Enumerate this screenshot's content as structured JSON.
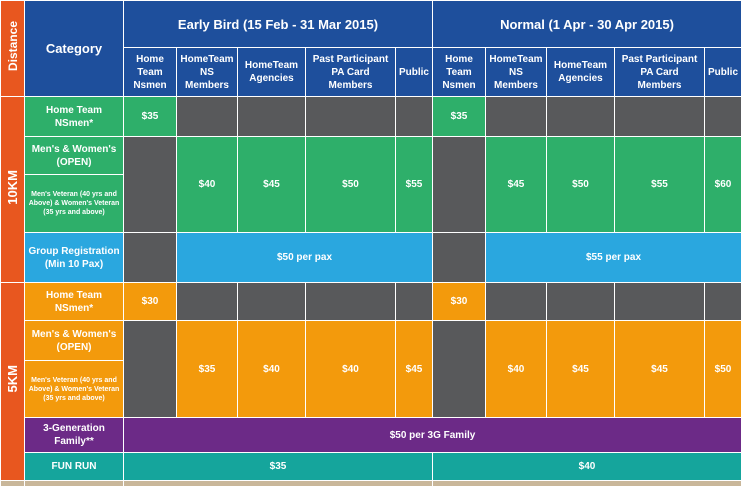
{
  "header": {
    "distance": "Distance",
    "category": "Category",
    "early_bird": "Early Bird (15 Feb - 31 Mar 2015)",
    "normal": "Normal (1 Apr - 30 Apr 2015)",
    "columns": [
      "Home Team Nsmen",
      "HomeTeam NS Members",
      "HomeTeam Agencies",
      "Past Participant PA Card Members",
      "Public"
    ]
  },
  "distances": {
    "km10": "10KM",
    "km5": "5KM"
  },
  "categories": {
    "hometeam_nsmen": "Home Team NSmen*",
    "mens_womens_open": "Men's & Women's (OPEN)",
    "veteran": "Men's Veteran (40 yrs and Above) & Women's Veteran (35 yrs and above)",
    "group": "Group Registration (Min 10 Pax)",
    "three_gen": "3-Generation Family**",
    "fun_run": "FUN RUN"
  },
  "prices_10km": {
    "early_nsmen": "$35",
    "normal_nsmen": "$35",
    "early": [
      "$40",
      "$45",
      "$50",
      "$55"
    ],
    "normal": [
      "$45",
      "$50",
      "$55",
      "$60"
    ],
    "group_early": "$50 per pax",
    "group_normal": "$55 per pax"
  },
  "prices_5km": {
    "early_nsmen": "$30",
    "normal_nsmen": "$30",
    "early": [
      "$35",
      "$40",
      "$40",
      "$45"
    ],
    "normal": [
      "$40",
      "$45",
      "$45",
      "$50"
    ],
    "three_gen": "$50 per 3G Family"
  },
  "fun_run": {
    "early": "$35",
    "normal": "$40"
  },
  "colors": {
    "header": "#1e4f9c",
    "distance": "#e8571f",
    "blocked": "#58595b",
    "km10": "#2eaf6a",
    "group": "#2aa7df",
    "km5": "#f39a0c",
    "three_gen": "#6c2a87",
    "fun_run": "#15a59c"
  }
}
